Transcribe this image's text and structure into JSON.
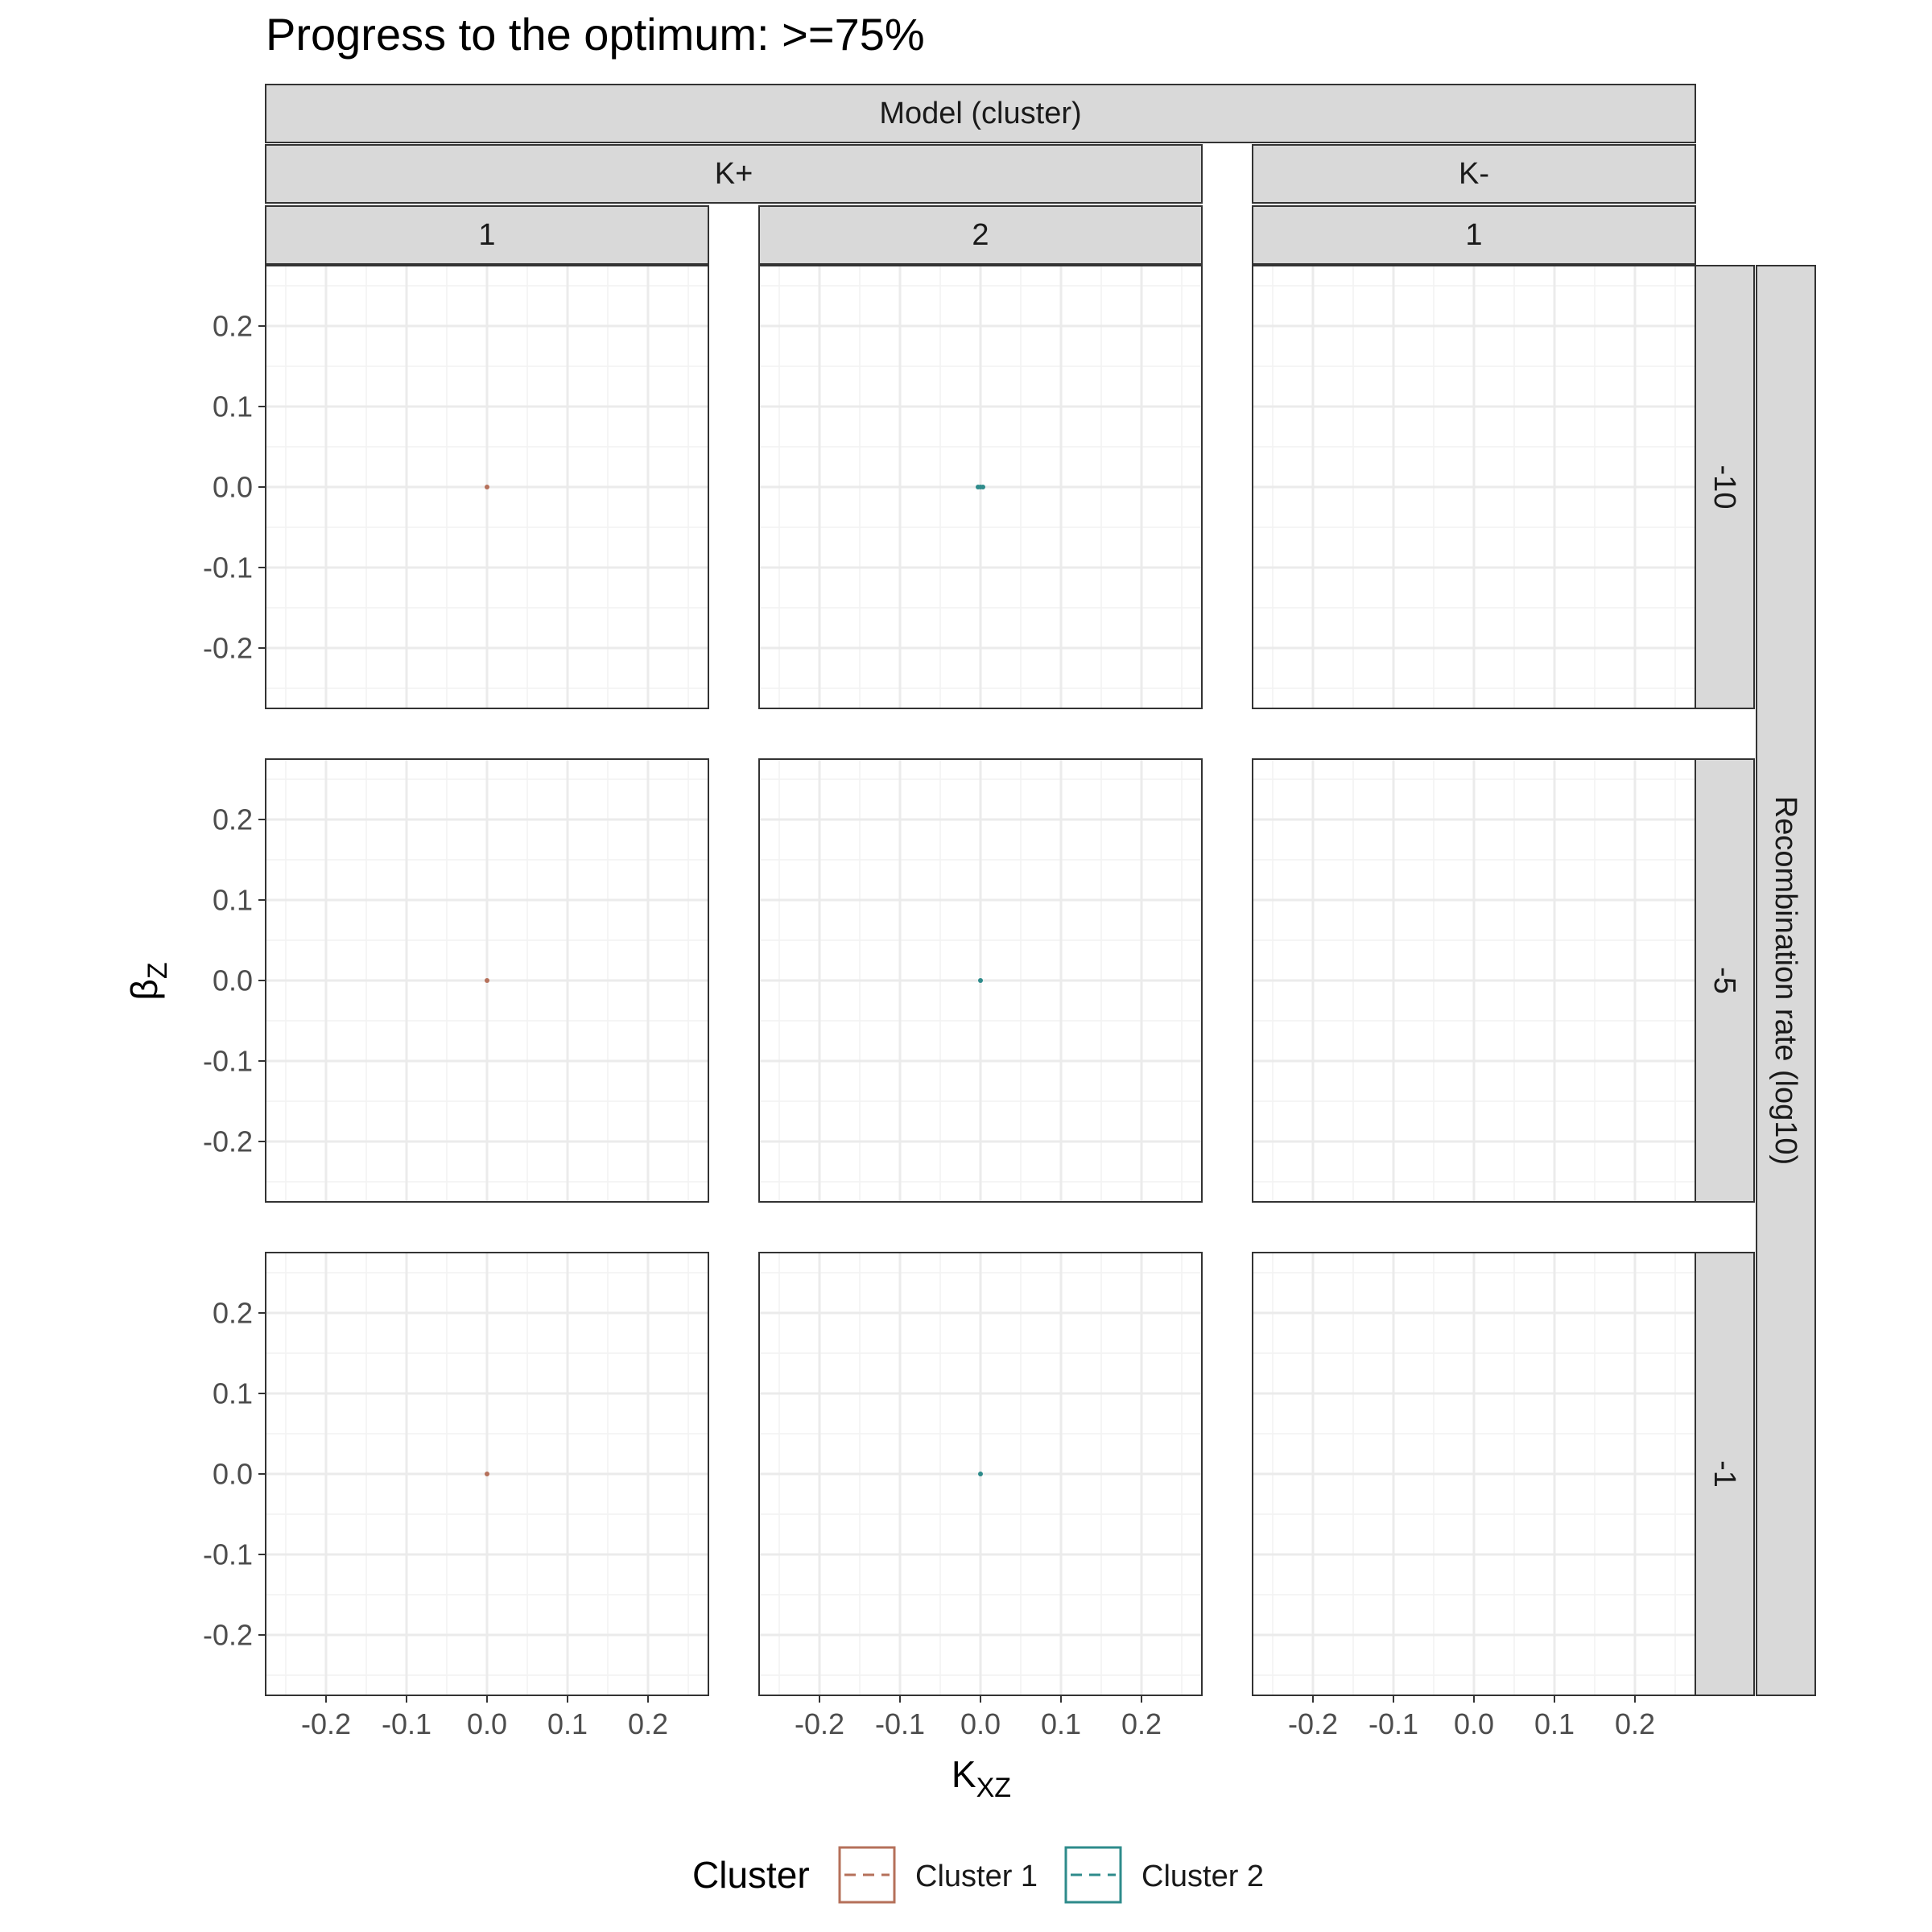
{
  "chart_data": {
    "type": "scatter",
    "title": "Progress to the optimum: >=75%",
    "xlabel": "K",
    "xlabel_sub": "XZ",
    "ylabel": "β",
    "ylabel_sub": "Z",
    "xlim": [
      -0.275,
      0.275
    ],
    "ylim": [
      -0.275,
      0.275
    ],
    "x_ticks": [
      "-0.2",
      "-0.1",
      "0.0",
      "0.1",
      "0.2"
    ],
    "y_ticks": [
      "0.2",
      "0.1",
      "0.0",
      "-0.1",
      "-0.2"
    ],
    "grid": true,
    "facet_top_label": "Model (cluster)",
    "facet_groups": [
      {
        "label": "K+",
        "columns": [
          "1",
          "2"
        ]
      },
      {
        "label": "K-",
        "columns": [
          "1"
        ]
      }
    ],
    "facet_right_label": "Recombination rate (log10)",
    "facet_rows": [
      "-10",
      "-5",
      "-1"
    ],
    "legend": {
      "title": "Cluster",
      "position": "bottom",
      "entries": [
        {
          "label": "Cluster 1",
          "color": "#b5705a"
        },
        {
          "label": "Cluster 2",
          "color": "#2e8b8b"
        }
      ]
    },
    "series": [
      {
        "cluster": "Cluster 1",
        "color": "#b5705a",
        "panels": [
          {
            "row": 0,
            "col": 0,
            "x": [
              0.0
            ],
            "y": [
              0.0
            ]
          },
          {
            "row": 1,
            "col": 0,
            "x": [
              0.0
            ],
            "y": [
              0.0
            ]
          },
          {
            "row": 2,
            "col": 0,
            "x": [
              0.0
            ],
            "y": [
              0.0
            ]
          }
        ]
      },
      {
        "cluster": "Cluster 2",
        "color": "#2e8b8b",
        "panels": [
          {
            "row": 0,
            "col": 1,
            "x": [
              -0.003,
              0.0,
              0.003
            ],
            "y": [
              0.0,
              0.0,
              0.0
            ]
          },
          {
            "row": 1,
            "col": 1,
            "x": [
              0.0
            ],
            "y": [
              0.0
            ]
          },
          {
            "row": 2,
            "col": 1,
            "x": [
              0.0
            ],
            "y": [
              0.0
            ]
          }
        ]
      }
    ]
  }
}
